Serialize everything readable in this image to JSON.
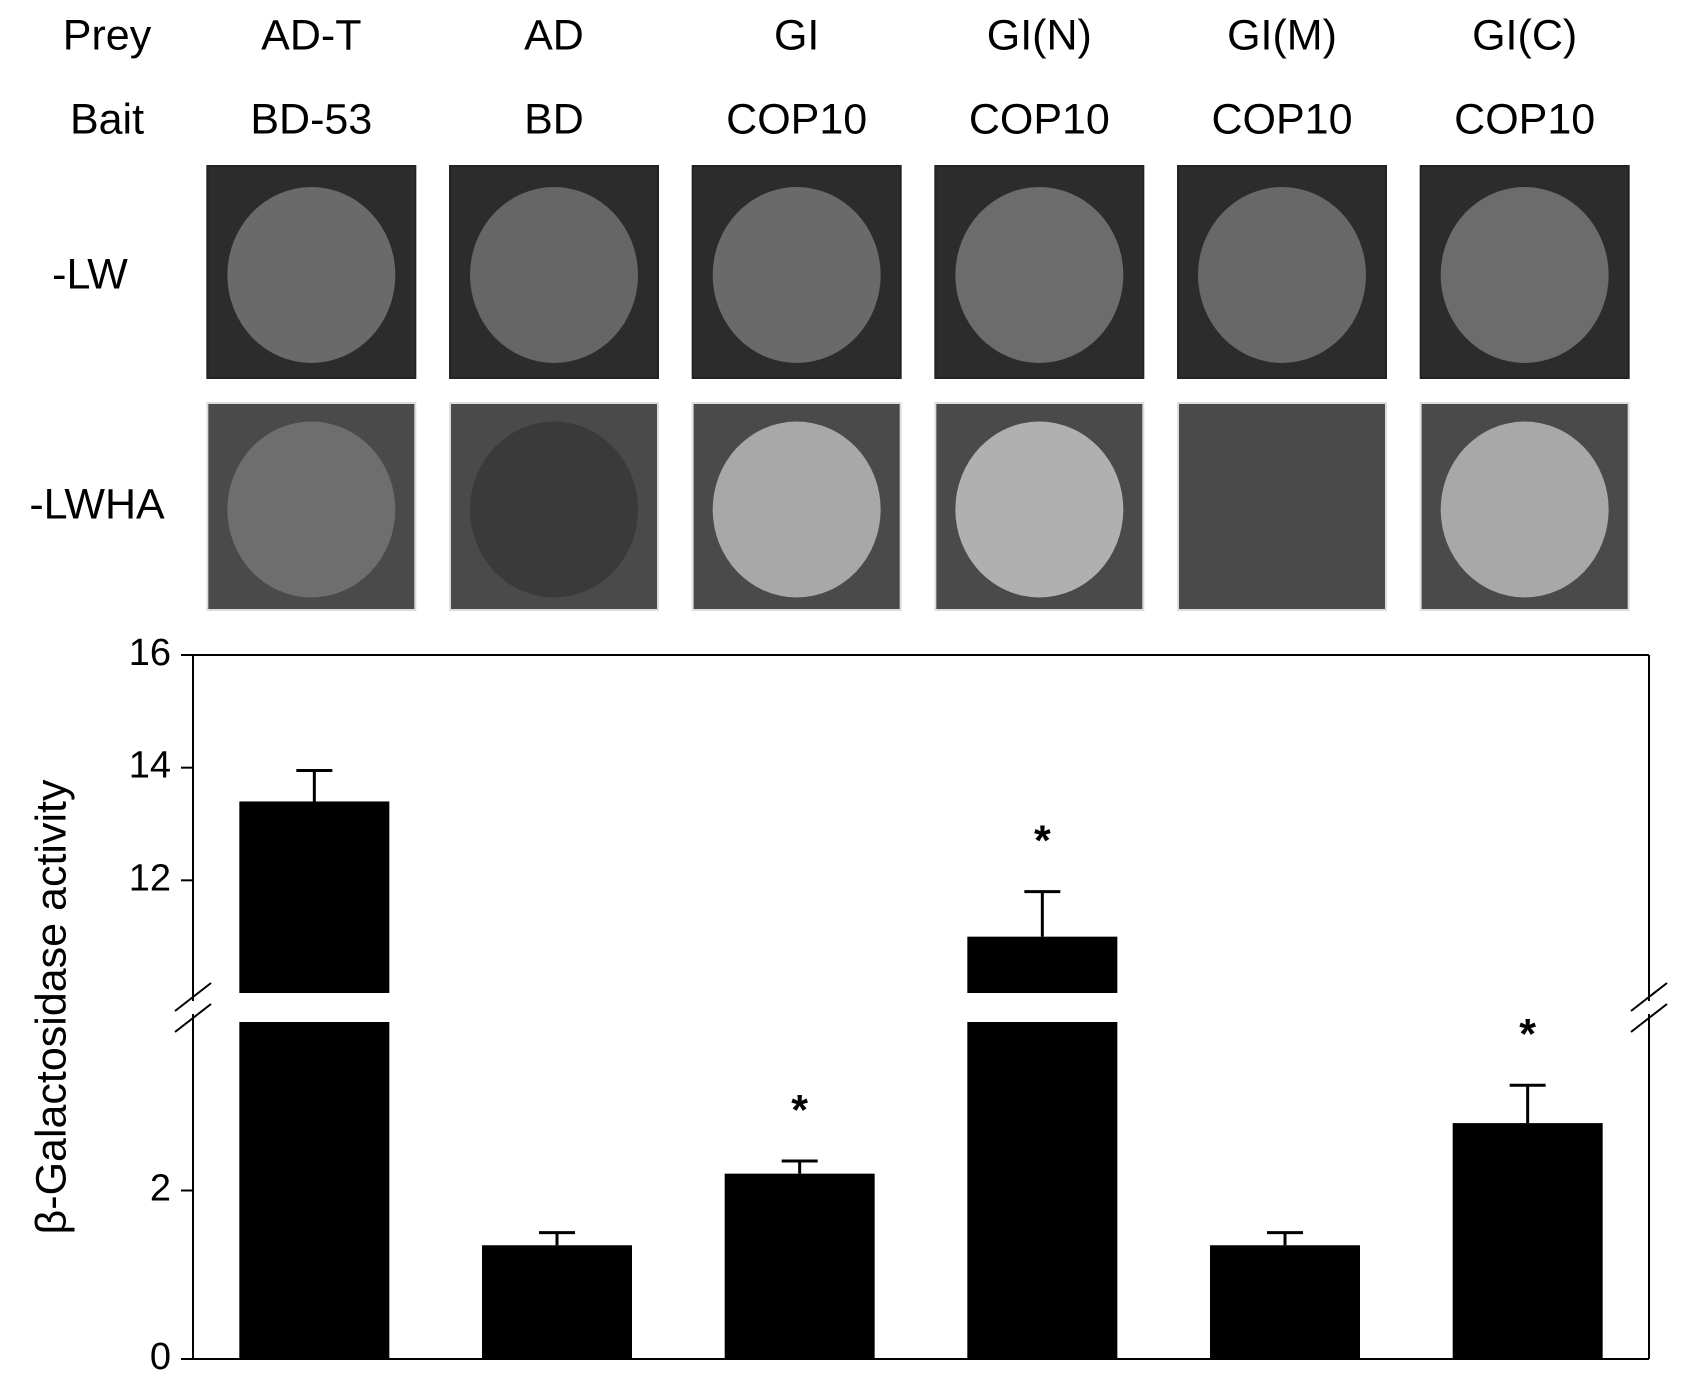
{
  "chart_data": {
    "type": "bar",
    "row_labels": {
      "prey": "Prey",
      "bait": "Bait"
    },
    "prey": [
      "AD-T",
      "AD",
      "GI",
      "GI(N)",
      "GI(M)",
      "GI(C)"
    ],
    "bait": [
      "BD-53",
      "BD",
      "COP10",
      "COP10",
      "COP10",
      "COP10"
    ],
    "panel_rows": [
      "-LW",
      "-LWHA"
    ],
    "ylabel": "β-Galactosidase activity",
    "values": [
      13.4,
      1.35,
      2.2,
      11.0,
      1.35,
      2.8
    ],
    "errors": [
      0.55,
      0.15,
      0.15,
      0.8,
      0.15,
      0.45
    ],
    "color": "#000000",
    "ylim": [
      0,
      16
    ],
    "axis_break": [
      4,
      10
    ],
    "yticks": [
      0,
      2,
      12,
      14,
      16
    ],
    "annotations": [
      {
        "index": 2,
        "text": "*"
      },
      {
        "index": 3,
        "text": "*"
      },
      {
        "index": 5,
        "text": "*"
      }
    ]
  }
}
